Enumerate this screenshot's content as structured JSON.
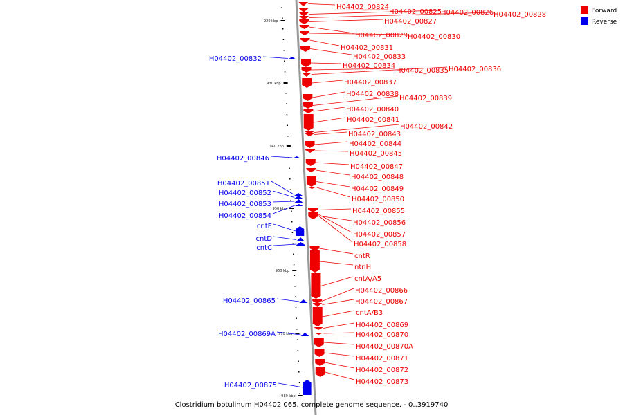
{
  "caption": "Clostridium botulinum H04402 065, complete genome sequence. - 0..3919740",
  "colors": {
    "forward": "#ee0000",
    "reverse": "#0000ee",
    "axis": "#888888"
  },
  "legend": [
    {
      "label": "Forward",
      "color": "#ee0000"
    },
    {
      "label": "Reverse",
      "color": "#0000ee"
    }
  ],
  "ticks": [
    "920 kbp",
    "930 kbp",
    "940 kbp",
    "950 kbp",
    "960 kbp",
    "970 kbp",
    "980 kbp"
  ],
  "reverse_genes": [
    "H04402_00832",
    "H04402_00846",
    "H04402_00851",
    "H04402_00852",
    "H04402_00853",
    "H04402_00854",
    "cntE",
    "cntD",
    "cntC",
    "H04402_00865",
    "H04402_00869A",
    "H04402_00875"
  ],
  "forward_genes": [
    "H04402_00824",
    "H04402_00825",
    "H04402_00826",
    "H04402_00828",
    "H04402_00827",
    "H04402_00829",
    "H04402_00830",
    "H04402_00831",
    "H04402_00833",
    "H04402_00834",
    "H04402_00835",
    "H04402_00836",
    "H04402_00837",
    "H04402_00838",
    "H04402_00839",
    "H04402_00840",
    "H04402_00841",
    "H04402_00842",
    "H04402_00843",
    "H04402_00844",
    "H04402_00845",
    "H04402_00847",
    "H04402_00848",
    "H04402_00849",
    "H04402_00850",
    "H04402_00855",
    "H04402_00856",
    "H04402_00857",
    "H04402_00858",
    "cntR",
    "ntnH",
    "cntA/A5",
    "H04402_00866",
    "H04402_00867",
    "cntA/B3",
    "H04402_00869",
    "H04402_00870",
    "H04402_00870A",
    "H04402_00871",
    "H04402_00872",
    "H04402_00873"
  ]
}
